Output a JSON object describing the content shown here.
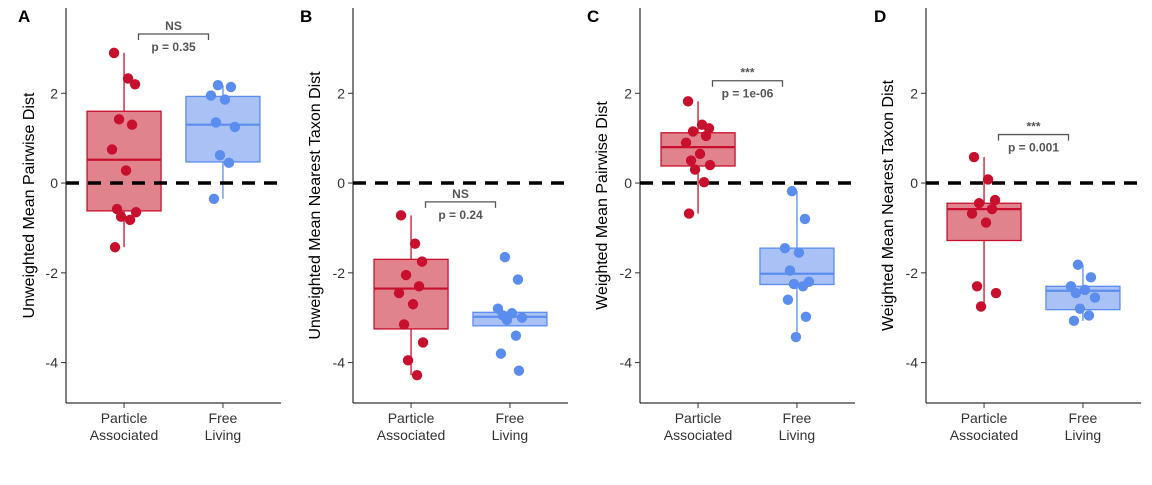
{
  "colors": {
    "particle_stroke": "#c8102e",
    "particle_fill": "#e0838d",
    "free_stroke": "#5b8def",
    "free_fill": "#a9c1f5",
    "reference_line": "#000000",
    "bracket": "#555555"
  },
  "chart_data": [
    {
      "type": "box",
      "panel": "A",
      "title": "",
      "ylabel": "Unweighted Mean Pairwise Dist",
      "xlabel": "",
      "ylim": [
        -4.9,
        3.9
      ],
      "yticks": [
        -4,
        -2,
        0,
        2
      ],
      "yticklabels": [
        "-4",
        "-2",
        "0",
        "2"
      ],
      "reference_line_y": 0,
      "categories": [
        {
          "line1": "Particle",
          "line2": "Associated"
        },
        {
          "line1": "Free",
          "line2": "Living"
        }
      ],
      "boxes": [
        {
          "group": "Particle Associated",
          "q1": -0.62,
          "median": 0.52,
          "q3": 1.6,
          "whisker_low": -1.43,
          "whisker_high": 2.9,
          "points": [
            2.9,
            2.33,
            2.2,
            1.42,
            1.3,
            0.75,
            0.28,
            -0.58,
            -0.65,
            -0.75,
            -0.82,
            -1.43
          ]
        },
        {
          "group": "Free Living",
          "q1": 0.47,
          "median": 1.3,
          "q3": 1.93,
          "whisker_low": -0.35,
          "whisker_high": 2.18,
          "points": [
            2.18,
            2.14,
            1.95,
            1.86,
            1.35,
            1.25,
            0.62,
            0.45,
            -0.35
          ]
        }
      ],
      "comparison": {
        "stars": "NS",
        "p_label": "p = 0.35",
        "y": 3.32
      }
    },
    {
      "type": "box",
      "panel": "B",
      "title": "",
      "ylabel": "Unweighted Mean Nearest Taxon Dist",
      "xlabel": "",
      "ylim": [
        -4.9,
        3.9
      ],
      "yticks": [
        -4,
        -2,
        0,
        2
      ],
      "yticklabels": [
        "-4",
        "-2",
        "0",
        "2"
      ],
      "reference_line_y": 0,
      "categories": [
        {
          "line1": "Particle",
          "line2": "Associated"
        },
        {
          "line1": "Free",
          "line2": "Living"
        }
      ],
      "boxes": [
        {
          "group": "Particle Associated",
          "q1": -3.25,
          "median": -2.35,
          "q3": -1.7,
          "whisker_low": -4.28,
          "whisker_high": -0.72,
          "points": [
            -0.72,
            -1.35,
            -1.75,
            -2.05,
            -2.3,
            -2.45,
            -2.7,
            -3.15,
            -3.55,
            -3.95,
            -4.28
          ]
        },
        {
          "group": "Free Living",
          "q1": -3.18,
          "median": -2.98,
          "q3": -2.88,
          "whisker_low": -3.18,
          "whisker_high": -2.88,
          "points": [
            -1.65,
            -2.15,
            -2.8,
            -2.9,
            -2.95,
            -3.0,
            -3.05,
            -3.4,
            -3.8,
            -4.18
          ]
        }
      ],
      "comparison": {
        "stars": "NS",
        "p_label": "p = 0.24",
        "y": -0.42
      }
    },
    {
      "type": "box",
      "panel": "C",
      "title": "",
      "ylabel": "Weighted Mean Pairwise Dist",
      "xlabel": "",
      "ylim": [
        -4.9,
        3.9
      ],
      "yticks": [
        -4,
        -2,
        0,
        2
      ],
      "yticklabels": [
        "-4",
        "-2",
        "0",
        "2"
      ],
      "reference_line_y": 0,
      "categories": [
        {
          "line1": "Particle",
          "line2": "Associated"
        },
        {
          "line1": "Free",
          "line2": "Living"
        }
      ],
      "boxes": [
        {
          "group": "Particle Associated",
          "q1": 0.38,
          "median": 0.8,
          "q3": 1.12,
          "whisker_low": -0.68,
          "whisker_high": 1.82,
          "points": [
            1.82,
            1.3,
            1.22,
            1.15,
            1.05,
            0.9,
            0.65,
            0.5,
            0.4,
            0.3,
            0.02,
            -0.68
          ]
        },
        {
          "group": "Free Living",
          "q1": -2.26,
          "median": -2.02,
          "q3": -1.45,
          "whisker_low": -3.43,
          "whisker_high": -0.18,
          "points": [
            -0.18,
            -0.8,
            -1.45,
            -1.55,
            -1.95,
            -2.2,
            -2.25,
            -2.3,
            -2.6,
            -2.98,
            -3.43
          ]
        }
      ],
      "comparison": {
        "stars": "***",
        "p_label": "p = 1e-06",
        "y": 2.28
      }
    },
    {
      "type": "box",
      "panel": "D",
      "title": "",
      "ylabel": "Weighted Mean Nearest Taxon Dist",
      "xlabel": "",
      "ylim": [
        -4.9,
        3.9
      ],
      "yticks": [
        -4,
        -2,
        0,
        2
      ],
      "yticklabels": [
        "-4",
        "-2",
        "0",
        "2"
      ],
      "reference_line_y": 0,
      "categories": [
        {
          "line1": "Particle",
          "line2": "Associated"
        },
        {
          "line1": "Free",
          "line2": "Living"
        }
      ],
      "boxes": [
        {
          "group": "Particle Associated",
          "q1": -1.28,
          "median": -0.58,
          "q3": -0.45,
          "whisker_low": -2.75,
          "whisker_high": 0.58,
          "points": [
            0.58,
            0.08,
            -0.38,
            -0.45,
            -0.58,
            -0.68,
            -0.88,
            -2.3,
            -2.45,
            -2.75
          ]
        },
        {
          "group": "Free Living",
          "q1": -2.82,
          "median": -2.4,
          "q3": -2.3,
          "whisker_low": -3.07,
          "whisker_high": -1.82,
          "points": [
            -1.82,
            -2.1,
            -2.3,
            -2.38,
            -2.45,
            -2.55,
            -2.8,
            -2.95,
            -3.07
          ]
        }
      ],
      "comparison": {
        "stars": "***",
        "p_label": "p = 0.001",
        "y": 1.08
      }
    }
  ]
}
